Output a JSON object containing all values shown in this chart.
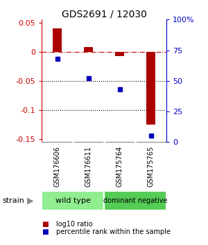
{
  "title": "GDS2691 / 12030",
  "samples": [
    "GSM176606",
    "GSM176611",
    "GSM175764",
    "GSM175765"
  ],
  "log10_ratio": [
    0.04,
    0.008,
    -0.008,
    -0.125
  ],
  "percentile_rank": [
    68,
    52,
    43,
    5
  ],
  "groups": [
    {
      "label": "wild type",
      "samples": [
        0,
        1
      ],
      "color": "#90ee90"
    },
    {
      "label": "dominant negative",
      "samples": [
        2,
        3
      ],
      "color": "#55cc55"
    }
  ],
  "ylim_left": [
    -0.155,
    0.055
  ],
  "ylim_right": [
    0,
    100
  ],
  "yticks_left": [
    0.05,
    0.0,
    -0.05,
    -0.1,
    -0.15
  ],
  "yticks_right": [
    100,
    75,
    50,
    25,
    0
  ],
  "left_tick_labels": [
    "0.05",
    "0",
    "-0.05",
    "-0.1",
    "-0.15"
  ],
  "right_tick_labels": [
    "100%",
    "75",
    "50",
    "25",
    "0"
  ],
  "ylabel_left_color": "#cc0000",
  "ylabel_right_color": "#0000cc",
  "bar_color": "#aa0000",
  "dot_color": "#0000bb",
  "hline_zero_color": "#cc0000",
  "hline_dotted_color": "#000000",
  "strain_label": "strain",
  "legend_ratio": "log10 ratio",
  "legend_pct": "percentile rank within the sample",
  "background_color": "#ffffff",
  "plot_bg_color": "#ffffff",
  "sample_box_color": "#cccccc",
  "sample_box_border": "#888888"
}
